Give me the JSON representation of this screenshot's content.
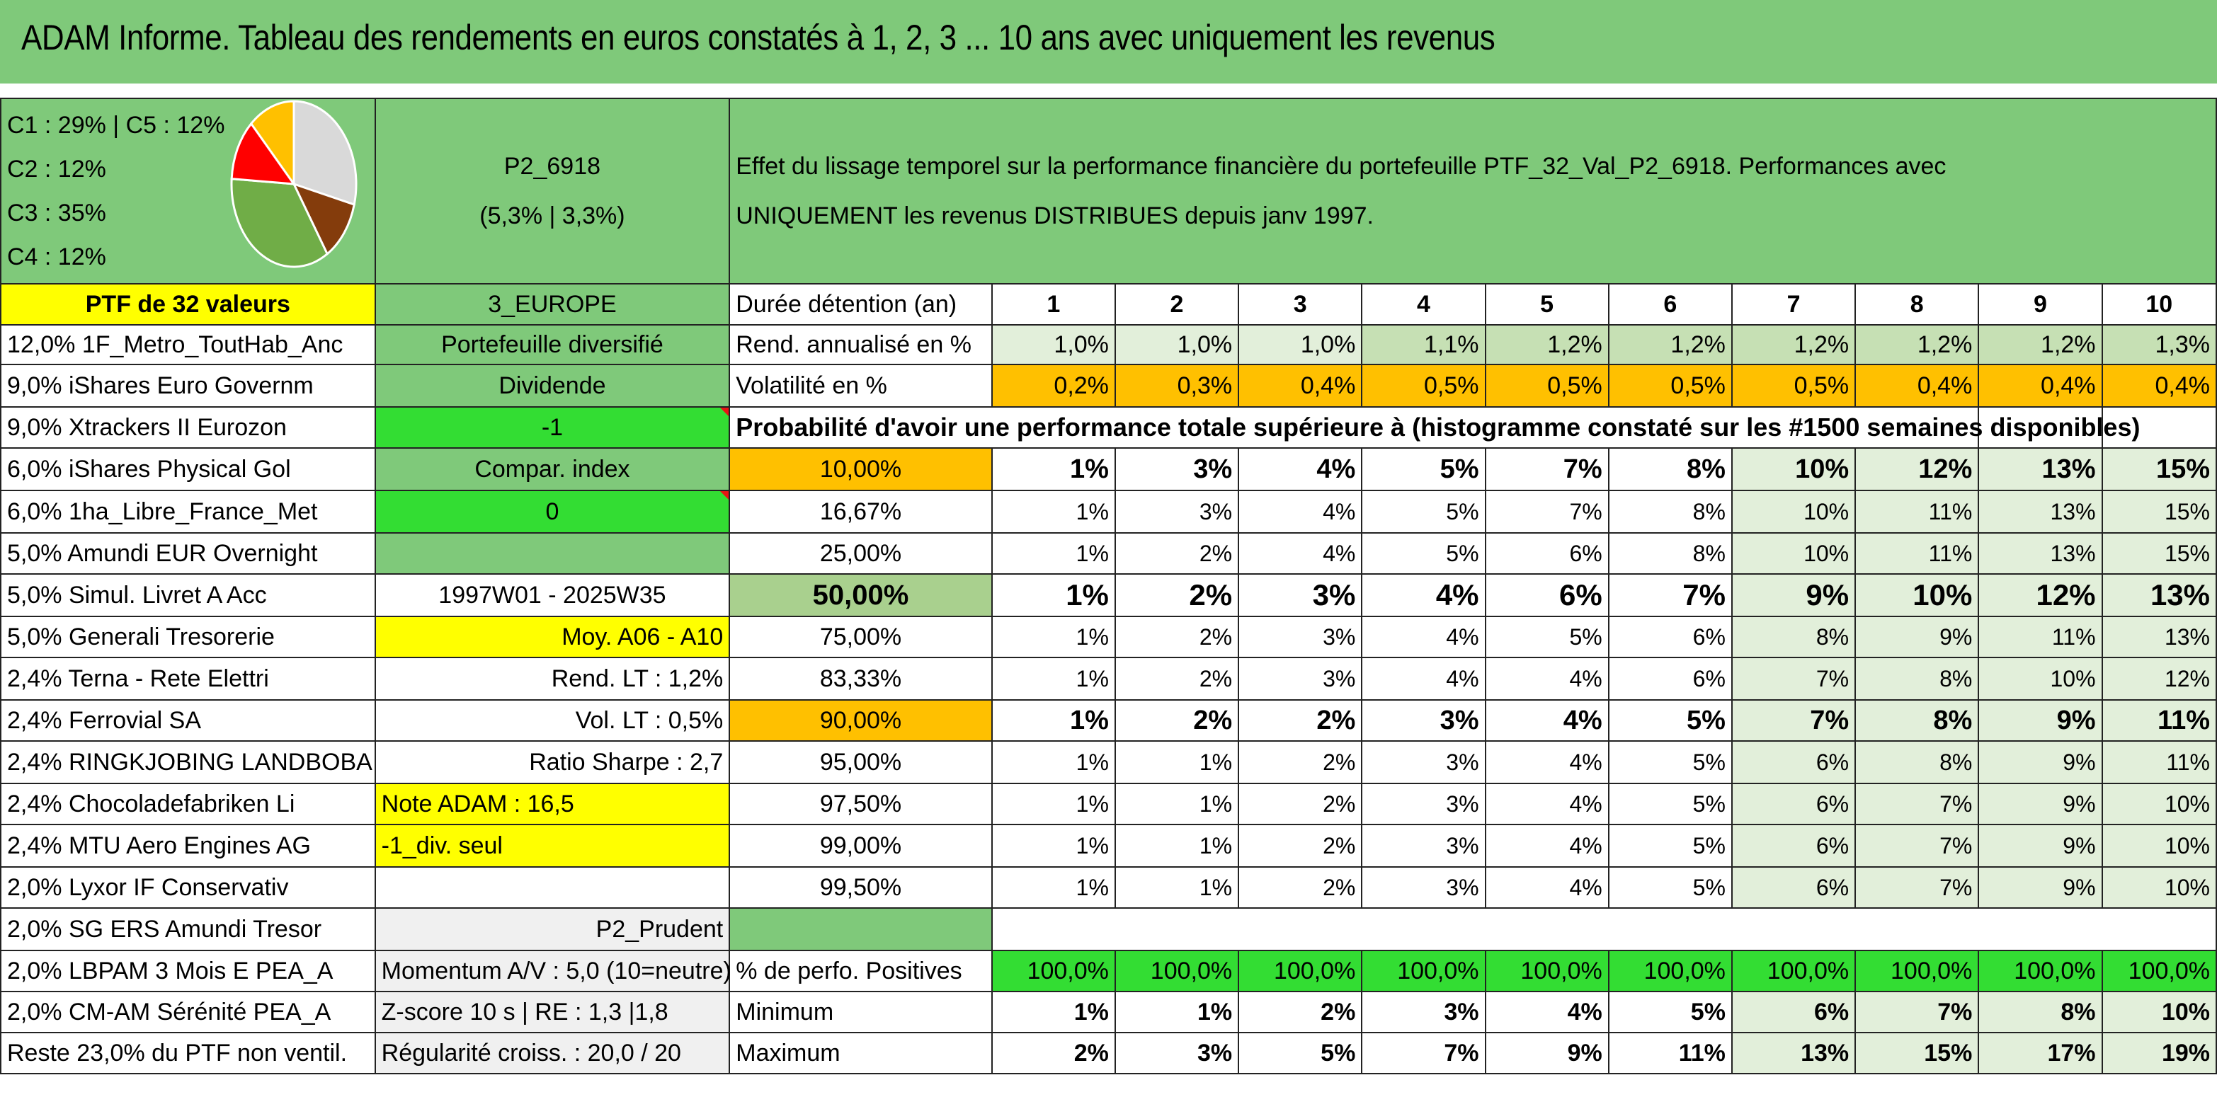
{
  "title": "ADAM Informe. Tableau des rendements en euros constatés à 1, 2, 3 ... 10 ans avec uniquement les revenus",
  "pie": {
    "legend": [
      "C1 : 29% | C5 : 12%",
      "C2 : 12%",
      "C3 : 35%",
      "C4 : 12%"
    ],
    "slices": [
      {
        "label": "C1",
        "value": 29,
        "color": "#d9d9d9"
      },
      {
        "label": "C2",
        "value": 12,
        "color": "#843c0c"
      },
      {
        "label": "C3",
        "value": 35,
        "color": "#70ad47"
      },
      {
        "label": "C4",
        "value": 12,
        "color": "#ff0000"
      },
      {
        "label": "C5",
        "value": 12,
        "color": "#ffc000"
      }
    ]
  },
  "portfolio": {
    "code": "P2_6918",
    "perf": "(5,3% | 3,3%)",
    "description_line1": "Effet du lissage temporel sur la performance financière du portefeuille PTF_32_Val_P2_6918. Performances avec",
    "description_line2": "UNIQUEMENT les revenus DISTRIBUES depuis janv 1997.",
    "count_label": "PTF de 32 valeurs",
    "zone": "3_EUROPE",
    "type": "Portefeuille diversifié",
    "style": "Dividende",
    "val_minus1": "-1",
    "compar": "Compar. index",
    "val_zero": "0",
    "period": "1997W01 - 2025W35",
    "moy": "Moy. A06 - A10",
    "rend_lt": "Rend. LT : 1,2%",
    "vol_lt": "Vol. LT : 0,5%",
    "sharpe": "Ratio Sharpe : 2,7",
    "note": "Note ADAM : 16,5",
    "div_seul": "-1_div. seul",
    "profile": "P2_Prudent",
    "momentum": "Momentum A/V : 5,0 (10=neutre)",
    "zscore": "Z-score 10 s | RE : 1,3 |1,8",
    "regularite": "Régularité croiss. : 20,0 / 20"
  },
  "holdings": [
    "12,0% 1F_Metro_ToutHab_Anc",
    "9,0% iShares Euro Governm",
    "9,0% Xtrackers II Eurozon",
    "6,0% iShares Physical Gol",
    "6,0% 1ha_Libre_France_Met",
    "5,0% Amundi EUR Overnight",
    "5,0% Simul. Livret A Acc",
    "5,0% Generali Tresorerie",
    "2,4% Terna - Rete Elettri",
    "2,4% Ferrovial SA",
    "2,4% RINGKJOBING LANDBOBA",
    "2,4% Chocoladefabriken Li",
    "2,4% MTU Aero Engines AG",
    "2,0% Lyxor IF Conservativ",
    "2,0% SG ERS Amundi Tresor",
    "2,0% LBPAM 3 Mois E PEA_A",
    "2,0% CM-AM Sérénité PEA_A",
    "Reste 23,0% du PTF non ventil."
  ],
  "stats": {
    "duree_label": "Durée détention (an)",
    "years": [
      "1",
      "2",
      "3",
      "4",
      "5",
      "6",
      "7",
      "8",
      "9",
      "10"
    ],
    "rend_label": "Rend. annualisé en %",
    "rend": [
      "1,0%",
      "1,0%",
      "1,0%",
      "1,1%",
      "1,2%",
      "1,2%",
      "1,2%",
      "1,2%",
      "1,2%",
      "1,3%"
    ],
    "vol_label": "Volatilité en %",
    "vol": [
      "0,2%",
      "0,3%",
      "0,4%",
      "0,5%",
      "0,5%",
      "0,5%",
      "0,5%",
      "0,4%",
      "0,4%",
      "0,4%"
    ],
    "proba_label": "Probabilité d'avoir une performance totale supérieure à (histogramme constaté sur les #1500 semaines disponibles)",
    "quantiles": [
      {
        "q": "10,00%",
        "vals": [
          "1%",
          "3%",
          "4%",
          "5%",
          "7%",
          "8%",
          "10%",
          "12%",
          "13%",
          "15%"
        ]
      },
      {
        "q": "16,67%",
        "vals": [
          "1%",
          "3%",
          "4%",
          "5%",
          "7%",
          "8%",
          "10%",
          "11%",
          "13%",
          "15%"
        ]
      },
      {
        "q": "25,00%",
        "vals": [
          "1%",
          "2%",
          "4%",
          "5%",
          "6%",
          "8%",
          "10%",
          "11%",
          "13%",
          "15%"
        ]
      },
      {
        "q": "50,00%",
        "vals": [
          "1%",
          "2%",
          "3%",
          "4%",
          "6%",
          "7%",
          "9%",
          "10%",
          "12%",
          "13%"
        ]
      },
      {
        "q": "75,00%",
        "vals": [
          "1%",
          "2%",
          "3%",
          "4%",
          "5%",
          "6%",
          "8%",
          "9%",
          "11%",
          "13%"
        ]
      },
      {
        "q": "83,33%",
        "vals": [
          "1%",
          "2%",
          "3%",
          "4%",
          "4%",
          "6%",
          "7%",
          "8%",
          "10%",
          "12%"
        ]
      },
      {
        "q": "90,00%",
        "vals": [
          "1%",
          "2%",
          "2%",
          "3%",
          "4%",
          "5%",
          "7%",
          "8%",
          "9%",
          "11%"
        ]
      },
      {
        "q": "95,00%",
        "vals": [
          "1%",
          "1%",
          "2%",
          "3%",
          "4%",
          "5%",
          "6%",
          "8%",
          "9%",
          "11%"
        ]
      },
      {
        "q": "97,50%",
        "vals": [
          "1%",
          "1%",
          "2%",
          "3%",
          "4%",
          "5%",
          "6%",
          "7%",
          "9%",
          "10%"
        ]
      },
      {
        "q": "99,00%",
        "vals": [
          "1%",
          "1%",
          "2%",
          "3%",
          "4%",
          "5%",
          "6%",
          "7%",
          "9%",
          "10%"
        ]
      },
      {
        "q": "99,50%",
        "vals": [
          "1%",
          "1%",
          "2%",
          "3%",
          "4%",
          "5%",
          "6%",
          "7%",
          "9%",
          "10%"
        ]
      }
    ],
    "pos_label": "% de perfo. Positives",
    "pos": [
      "100,0%",
      "100,0%",
      "100,0%",
      "100,0%",
      "100,0%",
      "100,0%",
      "100,0%",
      "100,0%",
      "100,0%",
      "100,0%"
    ],
    "min_label": "Minimum",
    "min": [
      "1%",
      "1%",
      "2%",
      "3%",
      "4%",
      "5%",
      "6%",
      "7%",
      "8%",
      "10%"
    ],
    "max_label": "Maximum",
    "max": [
      "2%",
      "3%",
      "5%",
      "7%",
      "9%",
      "11%",
      "13%",
      "15%",
      "17%",
      "19%"
    ]
  }
}
